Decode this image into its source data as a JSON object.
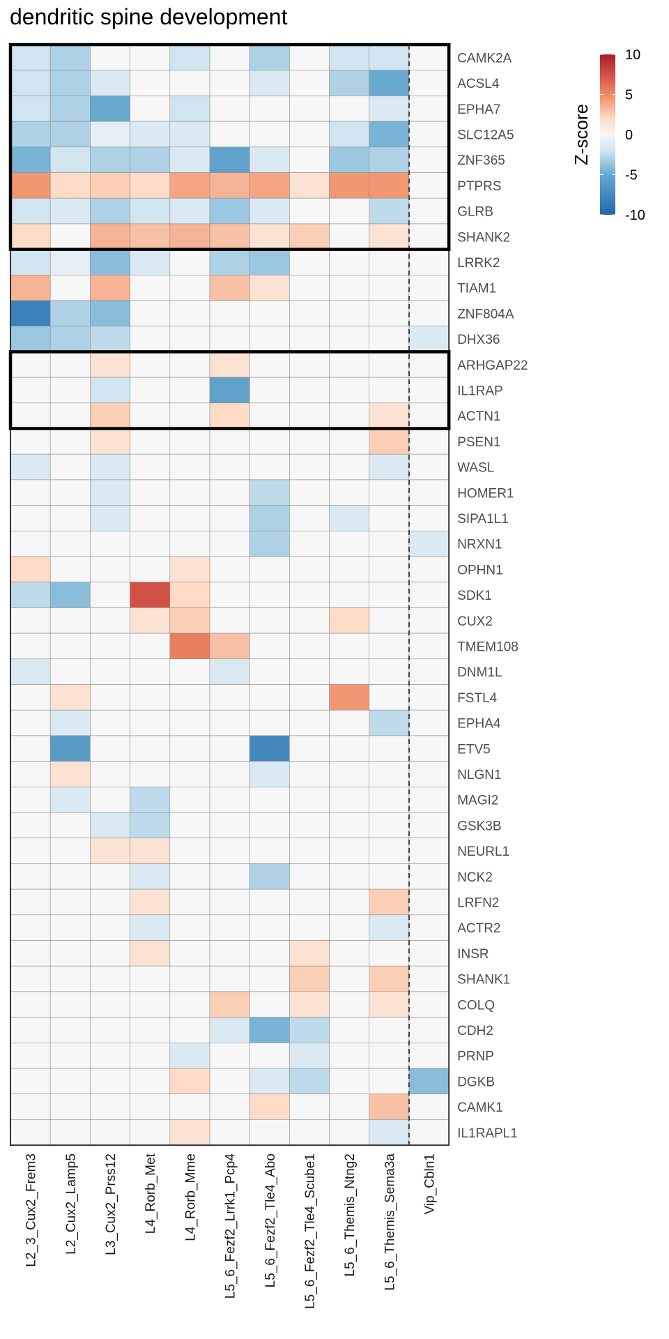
{
  "chart_data": {
    "type": "heatmap",
    "title": "dendritic spine development",
    "legend_title": "Z-score",
    "legend_ticks": [
      10,
      5,
      0,
      -5,
      -10
    ],
    "value_range": [
      -10,
      10
    ],
    "colors": {
      "low": "#2166ac",
      "mid": "#f7f7f7",
      "high": "#b2182b",
      "na": "#f7f7f7"
    },
    "columns": [
      "L2_3_Cux2_Frem3",
      "L2_Cux2_Lamp5",
      "L3_Cux2_Prss12",
      "L4_Rorb_Met",
      "L4_Rorb_Mme",
      "L5_6_Fezf2_Lrrk1_Pcp4",
      "L5_6_Fezf2_Tle4_Abo",
      "L5_6_Fezf2_Tle4_Scube1",
      "L5_6_Themis_Ntng2",
      "L5_6_Themis_Sema3a",
      "Vip_Cbln1"
    ],
    "rows": [
      "CAMK2A",
      "ACSL4",
      "EPHA7",
      "SLC12A5",
      "ZNF365",
      "PTPRS",
      "GLRB",
      "SHANK2",
      "LRRK2",
      "TIAM1",
      "ZNF804A",
      "DHX36",
      "ARHGAP22",
      "IL1RAP",
      "ACTN1",
      "PSEN1",
      "WASL",
      "HOMER1",
      "SIPA1L1",
      "NRXN1",
      "OPHN1",
      "SDK1",
      "CUX2",
      "TMEM108",
      "DNM1L",
      "FSTL4",
      "EPHA4",
      "ETV5",
      "NLGN1",
      "MAGI2",
      "GSK3B",
      "NEURL1",
      "NCK2",
      "LRFN2",
      "ACTR2",
      "INSR",
      "SHANK1",
      "COLQ",
      "CDH2",
      "PRNP",
      "DGKB",
      "CAMK1",
      "IL1RAPL1"
    ],
    "values": [
      [
        -2,
        -3,
        0,
        0,
        -2,
        0,
        -3,
        0,
        -2,
        -2,
        0
      ],
      [
        -2,
        -3,
        -1.5,
        0,
        0,
        0,
        -1.5,
        0,
        -3,
        -5,
        0
      ],
      [
        -2,
        -3,
        -5,
        0,
        -2,
        0,
        0,
        0,
        0,
        -1.5,
        0
      ],
      [
        -3,
        -3,
        -1,
        -1.5,
        -1.5,
        0,
        0,
        0,
        -2,
        -4.5,
        0
      ],
      [
        -4.5,
        -2,
        -3,
        -3,
        -1.5,
        -5.5,
        -1.5,
        0,
        -3.5,
        -3,
        0
      ],
      [
        4.5,
        2,
        2.5,
        2,
        4,
        3.5,
        4,
        1.5,
        4.5,
        4.5,
        0
      ],
      [
        -2,
        -1.5,
        -3,
        -2,
        -1.5,
        -3.5,
        -1.5,
        0,
        0,
        -2.5,
        0
      ],
      [
        2,
        0,
        3.5,
        3,
        3.5,
        3,
        1.5,
        2.5,
        0,
        1.5,
        0
      ],
      [
        -2,
        -1,
        -4,
        -1.5,
        0,
        -3,
        -3.5,
        0,
        0,
        0,
        0
      ],
      [
        3.5,
        0,
        3.5,
        0,
        0,
        3,
        1.5,
        0,
        0,
        0,
        0
      ],
      [
        -8,
        -3,
        -4,
        0,
        0,
        0,
        0,
        0,
        0,
        0,
        0
      ],
      [
        -3.5,
        -3,
        -2.5,
        0,
        0,
        0,
        0,
        0,
        0,
        0,
        -1.5
      ],
      [
        0,
        0,
        1.5,
        0,
        0,
        1.5,
        0,
        0,
        0,
        0,
        0
      ],
      [
        0,
        0,
        -2,
        0,
        0,
        -5.5,
        0,
        0,
        0,
        0,
        0
      ],
      [
        0,
        0,
        2.5,
        0,
        0,
        2,
        0,
        0,
        0,
        1.5,
        0
      ],
      [
        0,
        0,
        1.5,
        0,
        0,
        0,
        0,
        0,
        0,
        2.5,
        0
      ],
      [
        -1.5,
        0,
        -1.5,
        0,
        0,
        0,
        0,
        0,
        0,
        -1.5,
        0
      ],
      [
        0,
        0,
        -1.5,
        0,
        0,
        0,
        -2.5,
        0,
        0,
        0,
        0
      ],
      [
        0,
        0,
        -1.5,
        0,
        0,
        0,
        -3,
        0,
        -1.5,
        0,
        0
      ],
      [
        0,
        0,
        0,
        0,
        0,
        0,
        -3,
        0,
        0,
        0,
        -1.5
      ],
      [
        2,
        0,
        0,
        0,
        1.5,
        0,
        0,
        0,
        0,
        0,
        0
      ],
      [
        -2.5,
        -4,
        0,
        7.5,
        2,
        0,
        0,
        0,
        0,
        0,
        0
      ],
      [
        0,
        0,
        0,
        1.5,
        2.5,
        0,
        0,
        0,
        2,
        0,
        0
      ],
      [
        0,
        0,
        0,
        0,
        5.5,
        3,
        0,
        0,
        0,
        0,
        0
      ],
      [
        -1.5,
        0,
        0,
        0,
        0,
        -1.5,
        0,
        0,
        0,
        0,
        0
      ],
      [
        0,
        1.5,
        0,
        0,
        0,
        0,
        0,
        0,
        4.5,
        0,
        0
      ],
      [
        0,
        -1.5,
        0,
        0,
        0,
        0,
        0,
        0,
        0,
        -2.5,
        0
      ],
      [
        0,
        -6,
        0,
        0,
        0,
        0,
        -7.5,
        0,
        0,
        0,
        0
      ],
      [
        0,
        1.5,
        0,
        0,
        0,
        0,
        -1.5,
        0,
        0,
        0,
        0
      ],
      [
        0,
        -1.5,
        0,
        -2.5,
        0,
        0,
        0,
        0,
        0,
        0,
        0
      ],
      [
        0,
        0,
        -1.5,
        -2.5,
        0,
        0,
        0,
        0,
        0,
        0,
        0
      ],
      [
        0,
        0,
        1.5,
        1.5,
        0,
        0,
        0,
        0,
        0,
        0,
        0
      ],
      [
        0,
        0,
        0,
        -1.5,
        0,
        0,
        -3,
        0,
        0,
        0,
        0
      ],
      [
        0,
        0,
        0,
        1.5,
        0,
        0,
        0,
        0,
        0,
        2.5,
        0
      ],
      [
        0,
        0,
        0,
        -1.5,
        0,
        0,
        0,
        0,
        0,
        -1.5,
        0
      ],
      [
        0,
        0,
        0,
        1.5,
        0,
        0,
        0,
        1.5,
        0,
        0,
        0
      ],
      [
        0,
        0,
        0,
        0,
        0,
        0,
        0,
        2.5,
        0,
        2.5,
        0
      ],
      [
        0,
        0,
        0,
        0,
        0,
        2.5,
        0,
        1.5,
        0,
        1.5,
        0
      ],
      [
        0,
        0,
        0,
        0,
        0,
        -1.5,
        -4.5,
        -2.5,
        0,
        0,
        0
      ],
      [
        0,
        0,
        0,
        0,
        -1.5,
        0,
        0,
        -1.5,
        0,
        0,
        0
      ],
      [
        0,
        0,
        0,
        0,
        2,
        0,
        -1.5,
        -2.5,
        0,
        0,
        -4
      ],
      [
        0,
        0,
        0,
        0,
        0,
        0,
        2,
        0,
        0,
        3,
        0
      ],
      [
        0,
        0,
        0,
        0,
        1.5,
        0,
        0,
        0,
        0,
        -1.5,
        0
      ]
    ],
    "highlight_boxes": [
      {
        "rows": [
          "CAMK2A",
          "SHANK2"
        ]
      },
      {
        "rows": [
          "ARHGAP22",
          "ACTN1"
        ]
      }
    ],
    "dashed_separator_before_column": "Vip_Cbln1",
    "grid": true,
    "legend_position": "top-right"
  }
}
